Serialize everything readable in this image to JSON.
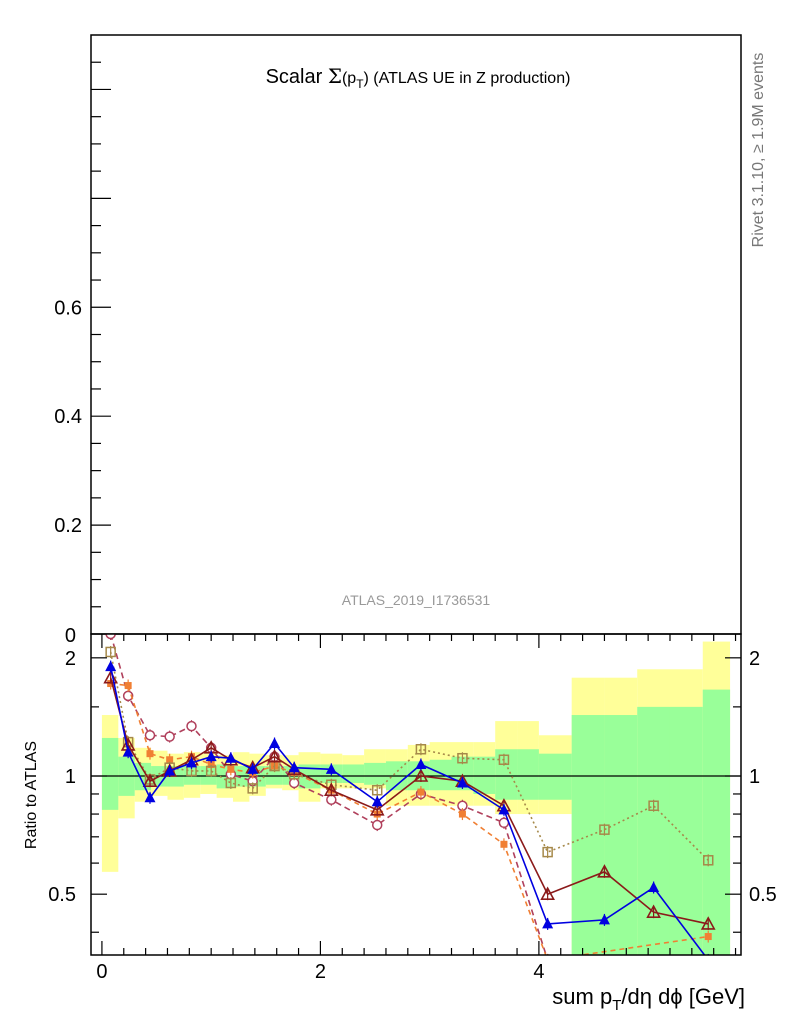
{
  "chart_data": [
    {
      "panel": "main",
      "type": "line",
      "title": "Scalar Σ(pT) (ATLAS UE in Z production)",
      "title_parts": {
        "lead": "Scalar ",
        "sym": "Σ",
        "open": "(p",
        "sub": "T",
        "close": ")",
        "rest": " (ATLAS UE in Z production)"
      },
      "analysis_label": "ATLAS_2019_I1736531",
      "side_label": "Rivet 3.1.10, ≥ 1.9M events",
      "ylim": [
        0,
        1.1
      ],
      "yticks": [
        0.2,
        0.4,
        0.6
      ],
      "yticklabels": [
        "0.2",
        "0.4",
        "0.6"
      ],
      "bottom_partial_label": "0",
      "series": []
    },
    {
      "panel": "ratio",
      "type": "line",
      "ylabel": "Ratio to ATLAS",
      "xlabel": "sum pT/dη dϕ [GeV]",
      "xlabel_parts": {
        "lead": "sum p",
        "sub": "T",
        "rest": "/dη dϕ [GeV]"
      },
      "xlim": [
        -0.1,
        5.85
      ],
      "ylim": [
        0.35,
        2.3
      ],
      "log_y": true,
      "xticks": [
        0,
        2,
        4
      ],
      "xticklabels": [
        "0",
        "2",
        "4"
      ],
      "yticks": [
        0.5,
        1,
        2
      ],
      "yticklabels": [
        "0.5",
        "1",
        "2"
      ],
      "reference_line": 1,
      "bands": {
        "bin_edges": [
          0.0,
          0.15,
          0.3,
          0.45,
          0.6,
          0.75,
          0.9,
          1.05,
          1.2,
          1.35,
          1.5,
          1.65,
          1.8,
          2.0,
          2.2,
          2.4,
          2.6,
          2.8,
          3.0,
          3.2,
          3.4,
          3.6,
          3.8,
          4.0,
          4.3,
          4.6,
          4.9,
          5.2,
          5.5,
          5.75
        ],
        "yellow_low": [
          0.57,
          0.78,
          0.86,
          0.89,
          0.87,
          0.88,
          0.9,
          0.88,
          0.86,
          0.89,
          0.93,
          0.92,
          0.86,
          0.93,
          0.93,
          0.93,
          0.84,
          0.84,
          0.84,
          0.84,
          0.84,
          0.8,
          0.8,
          0.8,
          0.3,
          0.3,
          0.3,
          0.3,
          0.3
        ],
        "yellow_high": [
          1.43,
          1.25,
          1.18,
          1.16,
          1.14,
          1.15,
          1.14,
          1.13,
          1.15,
          1.14,
          1.13,
          1.13,
          1.15,
          1.14,
          1.13,
          1.17,
          1.17,
          1.2,
          1.22,
          1.22,
          1.22,
          1.38,
          1.38,
          1.27,
          1.78,
          1.78,
          1.87,
          1.87,
          2.2
        ],
        "green_low": [
          0.82,
          0.89,
          0.92,
          0.94,
          0.94,
          0.95,
          0.95,
          0.93,
          0.94,
          0.94,
          0.95,
          0.95,
          0.93,
          0.96,
          0.96,
          0.95,
          0.92,
          0.92,
          0.92,
          0.92,
          0.9,
          0.87,
          0.87,
          0.87,
          0.35,
          0.35,
          0.35,
          0.35,
          0.35
        ],
        "green_high": [
          1.25,
          1.12,
          1.08,
          1.06,
          1.06,
          1.06,
          1.06,
          1.07,
          1.06,
          1.06,
          1.06,
          1.06,
          1.07,
          1.07,
          1.07,
          1.08,
          1.09,
          1.09,
          1.1,
          1.12,
          1.12,
          1.17,
          1.17,
          1.14,
          1.43,
          1.43,
          1.5,
          1.5,
          1.66
        ]
      },
      "series": [
        {
          "marker": "open-circle",
          "color": "#b0405c",
          "dash": "6,4",
          "x": [
            0.08,
            0.24,
            0.44,
            0.62,
            0.82,
            1.0,
            1.18,
            1.38,
            1.58,
            1.76,
            2.1,
            2.52,
            2.92,
            3.3,
            3.68,
            4.08
          ],
          "y": [
            2.3,
            1.6,
            1.27,
            1.26,
            1.34,
            1.18,
            1.01,
            0.97,
            1.12,
            0.96,
            0.87,
            0.75,
            0.9,
            0.84,
            0.76,
            0.34
          ]
        },
        {
          "marker": "filled-square",
          "color": "#f07f33",
          "dash": "5,4",
          "x": [
            0.08,
            0.24,
            0.44,
            0.62,
            0.82,
            1.0,
            1.18,
            1.38,
            1.58,
            1.76,
            2.1,
            2.52,
            2.92,
            3.3,
            3.68,
            4.08,
            5.55
          ],
          "y": [
            1.72,
            1.7,
            1.14,
            1.1,
            1.12,
            1.07,
            1.04,
            1.02,
            1.06,
            1.02,
            0.92,
            0.8,
            0.91,
            0.8,
            0.67,
            0.34,
            0.39
          ]
        },
        {
          "marker": "open-square",
          "color": "#a6894a",
          "dash": "2,3",
          "x": [
            0.08,
            0.24,
            0.44,
            0.62,
            0.82,
            1.0,
            1.18,
            1.38,
            1.58,
            1.76,
            2.1,
            2.52,
            2.92,
            3.3,
            3.68,
            4.08,
            4.6,
            5.05,
            5.55
          ],
          "y": [
            2.07,
            1.22,
            0.98,
            1.05,
            1.03,
            1.03,
            0.96,
            0.93,
            1.06,
            1.01,
            0.95,
            0.92,
            1.17,
            1.11,
            1.1,
            0.64,
            0.73,
            0.84,
            0.61
          ]
        },
        {
          "marker": "open-triangle",
          "color": "#8b1a1a",
          "dash": "",
          "x": [
            0.08,
            0.24,
            0.44,
            0.62,
            0.82,
            1.0,
            1.18,
            1.38,
            1.58,
            1.76,
            2.1,
            2.52,
            2.92,
            3.3,
            3.68,
            4.08,
            4.6,
            5.05,
            5.55
          ],
          "y": [
            1.78,
            1.2,
            0.97,
            1.03,
            1.1,
            1.18,
            1.1,
            1.05,
            1.12,
            1.04,
            0.92,
            0.82,
            1.0,
            0.97,
            0.84,
            0.5,
            0.57,
            0.45,
            0.42
          ]
        },
        {
          "marker": "filled-triangle",
          "color": "#0000e0",
          "dash": "",
          "x": [
            0.08,
            0.24,
            0.44,
            0.62,
            0.82,
            1.0,
            1.18,
            1.38,
            1.58,
            1.76,
            2.1,
            2.52,
            2.92,
            3.3,
            3.68,
            4.08,
            4.6,
            5.05,
            5.55
          ],
          "y": [
            1.9,
            1.15,
            0.88,
            1.03,
            1.08,
            1.12,
            1.11,
            1.04,
            1.21,
            1.05,
            1.04,
            0.86,
            1.07,
            0.96,
            0.82,
            0.42,
            0.43,
            0.52,
            0.34
          ]
        }
      ]
    }
  ]
}
